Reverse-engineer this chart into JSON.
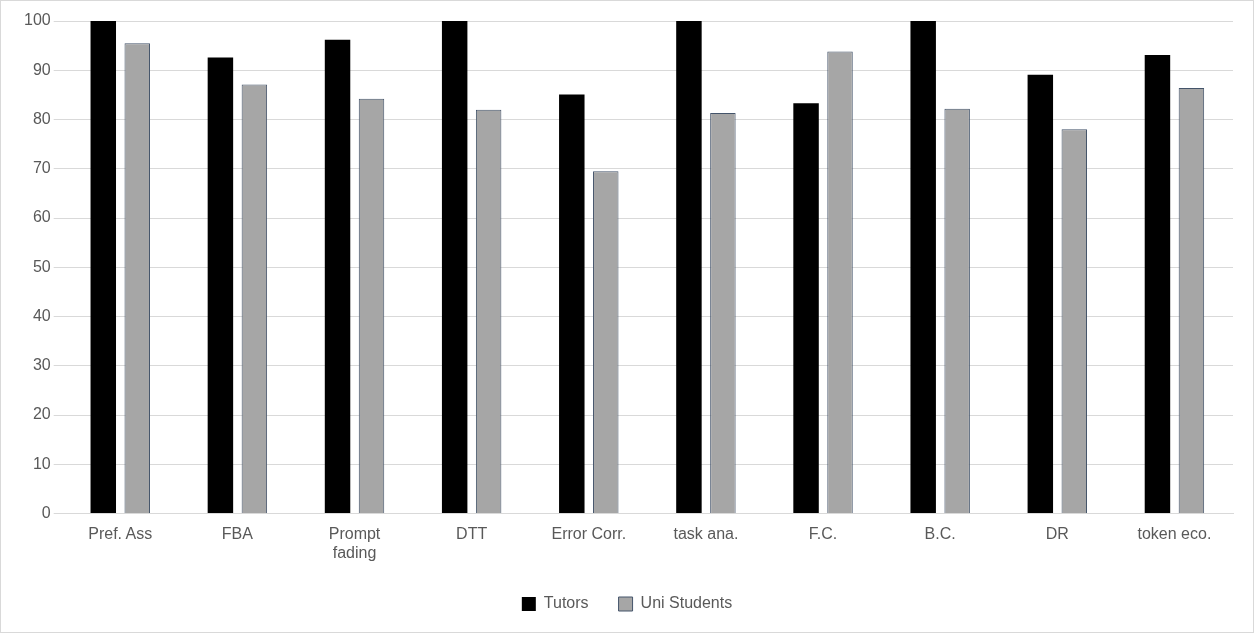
{
  "chart_data": {
    "type": "bar",
    "categories": [
      "Pref. Ass",
      "FBA",
      "Prompt fading",
      "DTT",
      "Error Corr.",
      "task ana.",
      "F.C.",
      "B.C.",
      "DR",
      "token eco."
    ],
    "series": [
      {
        "name": "Tutors",
        "color": "#000000",
        "values": [
          100,
          92.6,
          96.2,
          100,
          85.1,
          100,
          83.3,
          100,
          89.1,
          93.1
        ]
      },
      {
        "name": "Uni Students",
        "color": "#a6a6a6",
        "values": [
          95.5,
          87.1,
          84.2,
          82,
          69.5,
          81.3,
          93.8,
          82.2,
          78,
          86.4
        ]
      }
    ],
    "ylim": [
      0,
      100
    ],
    "yticks": [
      0,
      10,
      20,
      30,
      40,
      50,
      60,
      70,
      80,
      90,
      100
    ],
    "grid": "y",
    "legend": "bottom"
  }
}
